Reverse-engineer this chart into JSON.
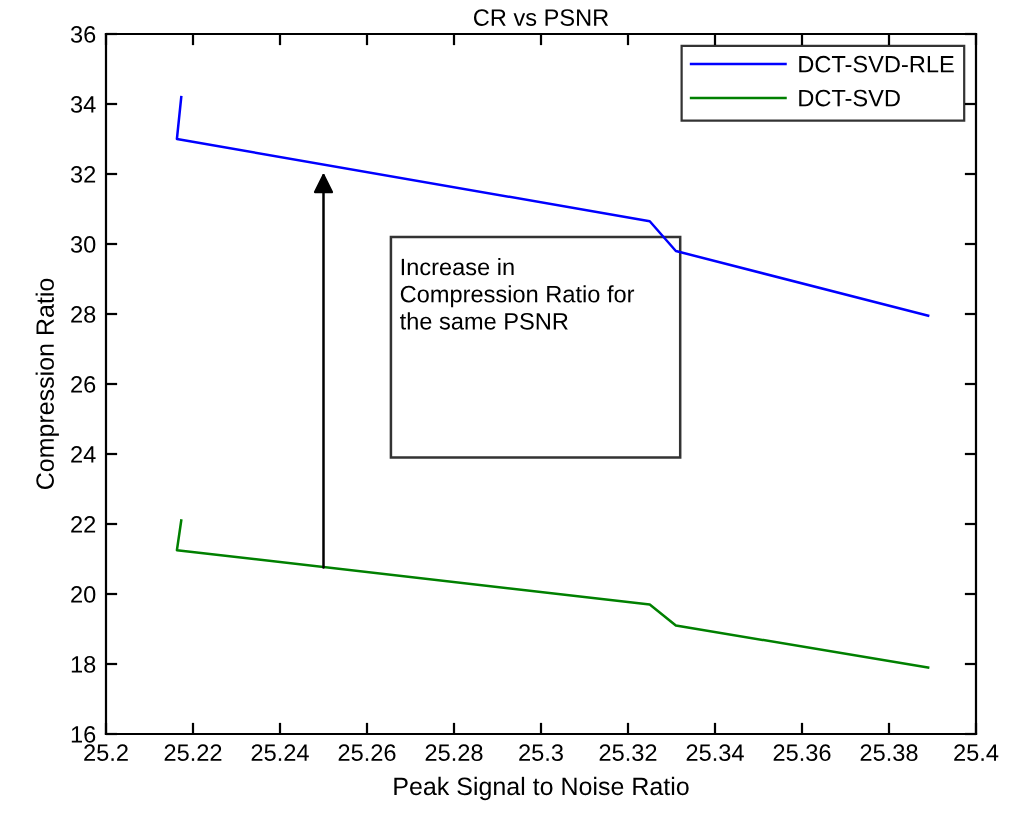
{
  "chart_data": {
    "type": "line",
    "title": "CR vs PSNR",
    "xlabel": "Peak Signal to Noise Ratio",
    "ylabel": "Compression Ratio",
    "series": [
      {
        "name": "DCT-SVD-RLE",
        "color": "#0000ff",
        "x": [
          25.2173,
          25.2163,
          25.325,
          25.331,
          25.389
        ],
        "values": [
          34.2,
          33.0,
          30.65,
          29.8,
          27.95
        ]
      },
      {
        "name": "DCT-SVD",
        "color": "#008000",
        "x": [
          25.2173,
          25.2163,
          25.325,
          25.331,
          25.389
        ],
        "values": [
          22.1,
          21.25,
          19.7,
          19.1,
          17.9
        ]
      }
    ],
    "annotations": [
      "Increase in\nCompression Ratio for\nthe same PSNR"
    ],
    "xlim": [
      25.2,
      25.4
    ],
    "xticks": [
      25.2,
      25.22,
      25.24,
      25.26,
      25.28,
      25.3,
      25.32,
      25.34,
      25.36,
      25.38,
      25.4
    ],
    "ylim": [
      16,
      36
    ],
    "yticks": [
      16,
      18,
      20,
      22,
      24,
      26,
      28,
      30,
      32,
      34,
      36
    ],
    "legend": "top right",
    "grid": false,
    "marker": "none",
    "line_style": "solid"
  }
}
